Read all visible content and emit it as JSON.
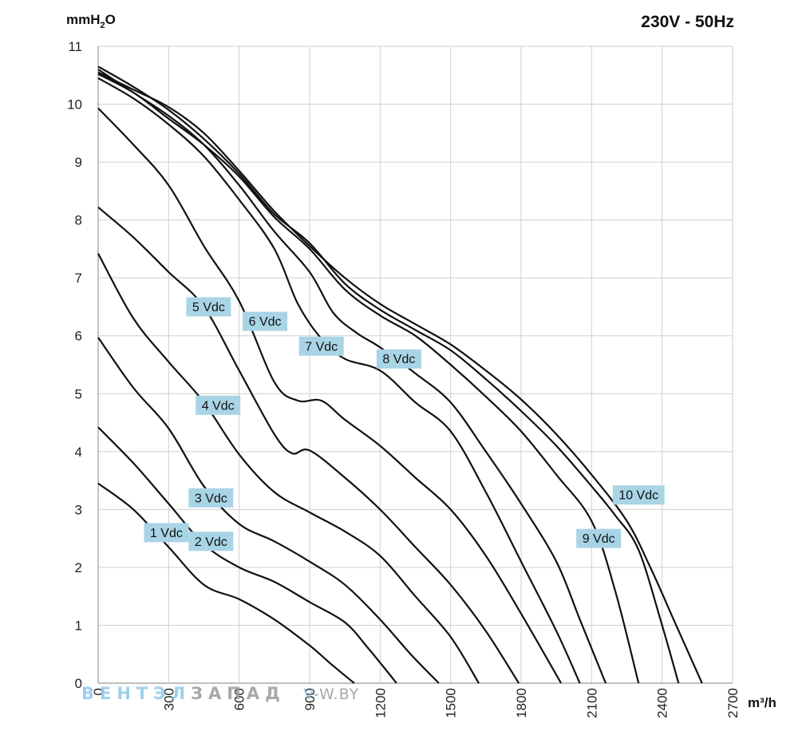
{
  "chart_data": {
    "type": "line",
    "title": "230V - 50Hz",
    "xlabel": "m³/h",
    "ylabel_parts": {
      "main": "mmH",
      "sub": "2",
      "tail": "O"
    },
    "xlim": [
      0,
      2700
    ],
    "ylim": [
      0,
      11
    ],
    "x_ticks": [
      "0",
      "300",
      "600",
      "900",
      "1200",
      "1500",
      "1800",
      "2100",
      "2400",
      "2700"
    ],
    "y_ticks": [
      "0",
      "1",
      "2",
      "3",
      "4",
      "5",
      "6",
      "7",
      "8",
      "9",
      "10",
      "11"
    ],
    "grid": true,
    "label_color": "#a8d4e6",
    "line_color": "#111111",
    "series": [
      {
        "name": "1 Vdc",
        "label_at": [
          290,
          2.6
        ],
        "points": [
          [
            0,
            3.45
          ],
          [
            150,
            3.0
          ],
          [
            300,
            2.35
          ],
          [
            450,
            1.7
          ],
          [
            600,
            1.45
          ],
          [
            750,
            1.1
          ],
          [
            900,
            0.65
          ],
          [
            1000,
            0.3
          ],
          [
            1090,
            0
          ]
        ]
      },
      {
        "name": "2 Vdc",
        "label_at": [
          480,
          2.45
        ],
        "points": [
          [
            0,
            4.42
          ],
          [
            150,
            3.8
          ],
          [
            300,
            3.1
          ],
          [
            450,
            2.4
          ],
          [
            600,
            2.0
          ],
          [
            750,
            1.75
          ],
          [
            900,
            1.4
          ],
          [
            1050,
            1.05
          ],
          [
            1150,
            0.6
          ],
          [
            1270,
            0
          ]
        ]
      },
      {
        "name": "3 Vdc",
        "label_at": [
          480,
          3.2
        ],
        "points": [
          [
            0,
            5.97
          ],
          [
            150,
            5.1
          ],
          [
            300,
            4.4
          ],
          [
            450,
            3.4
          ],
          [
            600,
            2.75
          ],
          [
            750,
            2.45
          ],
          [
            900,
            2.1
          ],
          [
            1050,
            1.7
          ],
          [
            1200,
            1.1
          ],
          [
            1330,
            0.5
          ],
          [
            1450,
            0
          ]
        ]
      },
      {
        "name": "4 Vdc",
        "label_at": [
          510,
          4.8
        ],
        "points": [
          [
            0,
            7.42
          ],
          [
            150,
            6.3
          ],
          [
            300,
            5.55
          ],
          [
            450,
            4.85
          ],
          [
            600,
            3.95
          ],
          [
            750,
            3.3
          ],
          [
            900,
            2.95
          ],
          [
            1050,
            2.62
          ],
          [
            1200,
            2.2
          ],
          [
            1350,
            1.5
          ],
          [
            1500,
            0.8
          ],
          [
            1620,
            0
          ]
        ]
      },
      {
        "name": "5 Vdc",
        "label_at": [
          470,
          6.5
        ],
        "points": [
          [
            0,
            8.22
          ],
          [
            150,
            7.7
          ],
          [
            300,
            7.1
          ],
          [
            450,
            6.5
          ],
          [
            600,
            5.4
          ],
          [
            750,
            4.3
          ],
          [
            825,
            3.97
          ],
          [
            900,
            4.02
          ],
          [
            1050,
            3.55
          ],
          [
            1200,
            3.0
          ],
          [
            1350,
            2.35
          ],
          [
            1500,
            1.7
          ],
          [
            1650,
            0.9
          ],
          [
            1790,
            0
          ]
        ]
      },
      {
        "name": "6 Vdc",
        "label_at": [
          710,
          6.25
        ],
        "points": [
          [
            0,
            9.93
          ],
          [
            150,
            9.3
          ],
          [
            300,
            8.6
          ],
          [
            450,
            7.55
          ],
          [
            600,
            6.6
          ],
          [
            750,
            5.2
          ],
          [
            850,
            4.88
          ],
          [
            950,
            4.88
          ],
          [
            1050,
            4.55
          ],
          [
            1200,
            4.1
          ],
          [
            1350,
            3.55
          ],
          [
            1500,
            3.0
          ],
          [
            1650,
            2.2
          ],
          [
            1800,
            1.2
          ],
          [
            1970,
            0
          ]
        ]
      },
      {
        "name": "7 Vdc",
        "label_at": [
          950,
          5.82
        ],
        "points": [
          [
            0,
            10.45
          ],
          [
            150,
            10.1
          ],
          [
            300,
            9.65
          ],
          [
            450,
            9.1
          ],
          [
            600,
            8.35
          ],
          [
            750,
            7.5
          ],
          [
            850,
            6.55
          ],
          [
            950,
            5.95
          ],
          [
            1050,
            5.6
          ],
          [
            1200,
            5.4
          ],
          [
            1350,
            4.85
          ],
          [
            1500,
            4.35
          ],
          [
            1650,
            3.3
          ],
          [
            1800,
            2.1
          ],
          [
            1950,
            0.9
          ],
          [
            2050,
            0
          ]
        ]
      },
      {
        "name": "8 Vdc",
        "label_at": [
          1280,
          5.6
        ],
        "points": [
          [
            0,
            10.6
          ],
          [
            150,
            10.2
          ],
          [
            300,
            9.8
          ],
          [
            450,
            9.3
          ],
          [
            600,
            8.6
          ],
          [
            750,
            7.8
          ],
          [
            900,
            7.1
          ],
          [
            1000,
            6.4
          ],
          [
            1100,
            6.05
          ],
          [
            1200,
            5.8
          ],
          [
            1350,
            5.35
          ],
          [
            1500,
            4.85
          ],
          [
            1650,
            4.0
          ],
          [
            1800,
            3.1
          ],
          [
            1950,
            2.1
          ],
          [
            2050,
            1.1
          ],
          [
            2160,
            0
          ]
        ]
      },
      {
        "name": "9 Vdc",
        "label_at": [
          2130,
          2.5
        ],
        "points": [
          [
            0,
            10.52
          ],
          [
            150,
            10.2
          ],
          [
            300,
            9.75
          ],
          [
            450,
            9.3
          ],
          [
            600,
            8.75
          ],
          [
            750,
            8.05
          ],
          [
            900,
            7.5
          ],
          [
            1050,
            6.8
          ],
          [
            1200,
            6.35
          ],
          [
            1350,
            6.0
          ],
          [
            1500,
            5.5
          ],
          [
            1650,
            4.95
          ],
          [
            1800,
            4.35
          ],
          [
            1950,
            3.6
          ],
          [
            2100,
            2.8
          ],
          [
            2200,
            1.6
          ],
          [
            2300,
            0
          ]
        ]
      },
      {
        "name": "10 Vdc",
        "label_at": [
          2300,
          3.25
        ],
        "points": [
          [
            0,
            10.65
          ],
          [
            150,
            10.3
          ],
          [
            300,
            9.9
          ],
          [
            450,
            9.4
          ],
          [
            600,
            8.8
          ],
          [
            750,
            8.1
          ],
          [
            900,
            7.6
          ],
          [
            1050,
            6.9
          ],
          [
            1200,
            6.45
          ],
          [
            1350,
            6.1
          ],
          [
            1500,
            5.75
          ],
          [
            1650,
            5.25
          ],
          [
            1800,
            4.7
          ],
          [
            1950,
            4.1
          ],
          [
            2100,
            3.4
          ],
          [
            2200,
            2.9
          ],
          [
            2300,
            2.3
          ],
          [
            2400,
            1.0
          ],
          [
            2470,
            0
          ]
        ]
      },
      {
        "name": "",
        "label_at": null,
        "points": [
          [
            0,
            10.55
          ],
          [
            150,
            10.25
          ],
          [
            300,
            9.95
          ],
          [
            450,
            9.5
          ],
          [
            600,
            8.85
          ],
          [
            750,
            8.15
          ],
          [
            900,
            7.55
          ],
          [
            1050,
            7.0
          ],
          [
            1200,
            6.55
          ],
          [
            1350,
            6.2
          ],
          [
            1500,
            5.85
          ],
          [
            1650,
            5.4
          ],
          [
            1800,
            4.9
          ],
          [
            1950,
            4.3
          ],
          [
            2100,
            3.6
          ],
          [
            2250,
            2.8
          ],
          [
            2350,
            2.0
          ],
          [
            2460,
            1.0
          ],
          [
            2570,
            0
          ]
        ]
      }
    ]
  },
  "watermark": {
    "word_a": "ВЕНТЭЛ",
    "word_b": "ЗАПАД",
    "site_a": "V",
    "site_b": "-W.BY",
    "color_a": "#8fc8e8",
    "color_b": "#9a9a9a"
  }
}
